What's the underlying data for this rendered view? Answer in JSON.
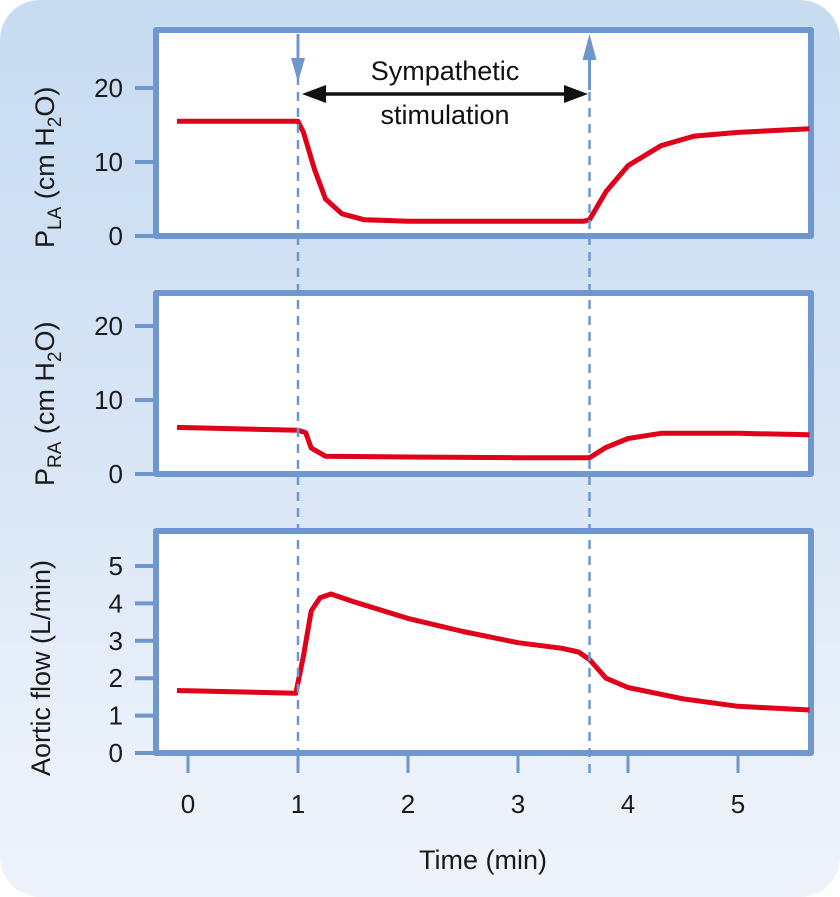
{
  "colors": {
    "frame": "#6f97cf",
    "trace": "#e0001a",
    "arrow": "#111111",
    "marker": "#6f97cf",
    "background_top": "#c7dbf1",
    "background_bottom": "#eef3fb"
  },
  "annotation": {
    "line1": "Sympathetic",
    "line2": "stimulation",
    "start_min": 1.0,
    "end_min": 3.65
  },
  "x_axis": {
    "label": "Time (min)",
    "ticks": [
      "0",
      "1",
      "2",
      "3",
      "4",
      "5"
    ]
  },
  "panels": [
    {
      "id": "pla",
      "ylabel_main": "P",
      "ylabel_sub": "LA",
      "ylabel_rest1": " (cm H",
      "ylabel_sub2": "2",
      "ylabel_rest2": "O)",
      "ticks": [
        "0",
        "10",
        "20"
      ]
    },
    {
      "id": "pra",
      "ylabel_main": "P",
      "ylabel_sub": "RA",
      "ylabel_rest1": " (cm H",
      "ylabel_sub2": "2",
      "ylabel_rest2": "O)",
      "ticks": [
        "0",
        "10",
        "20"
      ]
    },
    {
      "id": "aortic",
      "ylabel": "Aortic flow (L/min)",
      "ticks": [
        "0",
        "1",
        "2",
        "3",
        "4",
        "5"
      ]
    }
  ],
  "chart_data": [
    {
      "type": "line",
      "title": "Left atrial pressure",
      "xlabel": "Time (min)",
      "ylabel": "P_LA (cm H2O)",
      "xlim": [
        -0.1,
        5.65
      ],
      "ylim": [
        0,
        27
      ],
      "yticks": [
        0,
        10,
        20
      ],
      "grid": false,
      "annotations": [
        "Sympathetic stimulation from t=1.0 to t=3.65 min"
      ],
      "series": [
        {
          "name": "P_LA",
          "x": [
            -0.1,
            1.0,
            1.05,
            1.15,
            1.25,
            1.4,
            1.6,
            2.0,
            3.0,
            3.6,
            3.65,
            3.8,
            4.0,
            4.3,
            4.6,
            5.0,
            5.65
          ],
          "y": [
            15.5,
            15.5,
            14.0,
            9.0,
            5.0,
            3.0,
            2.2,
            2.0,
            2.0,
            2.0,
            2.2,
            6.0,
            9.5,
            12.2,
            13.5,
            14.0,
            14.5
          ]
        }
      ]
    },
    {
      "type": "line",
      "title": "Right atrial pressure",
      "xlabel": "Time (min)",
      "ylabel": "P_RA (cm H2O)",
      "xlim": [
        -0.1,
        5.65
      ],
      "ylim": [
        0,
        27
      ],
      "yticks": [
        0,
        10,
        20
      ],
      "grid": false,
      "series": [
        {
          "name": "P_RA",
          "x": [
            -0.1,
            1.0,
            1.07,
            1.12,
            1.25,
            2.0,
            3.0,
            3.65,
            3.8,
            4.0,
            4.3,
            5.0,
            5.65
          ],
          "y": [
            6.3,
            5.9,
            5.6,
            3.5,
            2.4,
            2.3,
            2.2,
            2.2,
            3.6,
            4.8,
            5.5,
            5.5,
            5.3
          ]
        }
      ]
    },
    {
      "type": "line",
      "title": "Aortic flow",
      "xlabel": "Time (min)",
      "ylabel": "Aortic flow (L/min)",
      "xlim": [
        -0.1,
        5.65
      ],
      "ylim": [
        0,
        5.9
      ],
      "yticks": [
        0,
        1,
        2,
        3,
        4,
        5
      ],
      "grid": false,
      "series": [
        {
          "name": "Aortic flow",
          "x": [
            -0.1,
            0.98,
            1.05,
            1.12,
            1.2,
            1.3,
            1.5,
            2.0,
            2.5,
            3.0,
            3.4,
            3.55,
            3.65,
            3.8,
            4.0,
            4.5,
            5.0,
            5.65
          ],
          "y": [
            1.67,
            1.6,
            2.6,
            3.8,
            4.15,
            4.25,
            4.05,
            3.6,
            3.25,
            2.95,
            2.8,
            2.7,
            2.5,
            2.0,
            1.75,
            1.45,
            1.25,
            1.15
          ]
        }
      ]
    }
  ]
}
